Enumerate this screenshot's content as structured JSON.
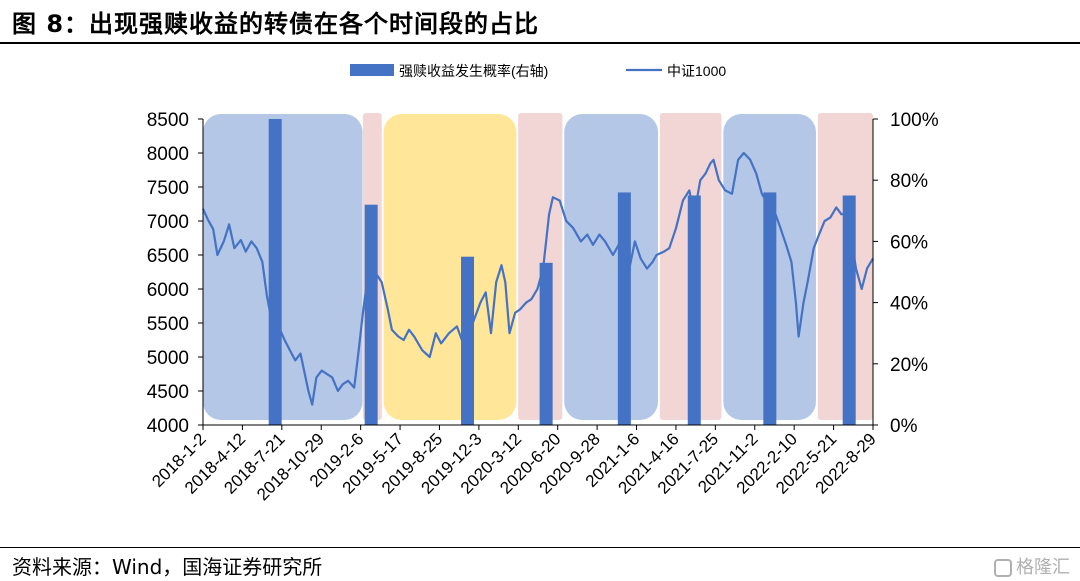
{
  "title": "图 8：出现强赎收益的转债在各个时间段的占比",
  "source": "资料来源：Wind，国海证券研究所",
  "watermark": "格隆汇",
  "colors": {
    "bar": "#4472C4",
    "line": "#4472C4",
    "band_blue": "#B4C7E7",
    "band_pink": "#F2D5D5",
    "band_yellow": "#FFE699"
  },
  "chart_data": {
    "type": "bar+line",
    "legend": [
      "强赎收益发生概率(右轴)",
      "中证1000"
    ],
    "legend_position": "top-center",
    "y_left": {
      "min": 4000,
      "max": 8500,
      "ticks": [
        4000,
        4500,
        5000,
        5500,
        6000,
        6500,
        7000,
        7500,
        8000,
        8500
      ]
    },
    "y_right": {
      "min": 0,
      "max": 1,
      "ticks": [
        "0%",
        "20%",
        "40%",
        "60%",
        "80%",
        "100%"
      ]
    },
    "x_ticks": [
      "2018-1-2",
      "2018-4-12",
      "2018-7-21",
      "2018-10-29",
      "2019-2-6",
      "2019-5-17",
      "2019-8-25",
      "2019-12-3",
      "2020-3-12",
      "2020-6-20",
      "2020-9-28",
      "2021-1-6",
      "2021-4-16",
      "2021-7-25",
      "2021-11-2",
      "2022-2-10",
      "2022-5-21",
      "2022-8-29"
    ],
    "x_range": [
      "2018-01-02",
      "2022-11-10"
    ],
    "bands": [
      {
        "start": "2018-01-02",
        "end": "2019-02-28",
        "color": "blue"
      },
      {
        "start": "2019-03-01",
        "end": "2019-04-20",
        "color": "pink"
      },
      {
        "start": "2019-04-25",
        "end": "2020-04-10",
        "color": "yellow"
      },
      {
        "start": "2020-04-15",
        "end": "2020-08-10",
        "color": "pink"
      },
      {
        "start": "2020-08-15",
        "end": "2021-04-20",
        "color": "blue"
      },
      {
        "start": "2021-04-25",
        "end": "2021-10-05",
        "color": "pink"
      },
      {
        "start": "2021-10-10",
        "end": "2022-06-12",
        "color": "blue"
      },
      {
        "start": "2022-06-17",
        "end": "2022-11-10",
        "color": "pink"
      }
    ],
    "bars": [
      {
        "date": "2018-07-12",
        "value": 1.0
      },
      {
        "date": "2019-03-23",
        "value": 0.72
      },
      {
        "date": "2019-12-03",
        "value": 0.55
      },
      {
        "date": "2020-06-28",
        "value": 0.53
      },
      {
        "date": "2021-01-21",
        "value": 0.76
      },
      {
        "date": "2021-07-25",
        "value": 0.75
      },
      {
        "date": "2022-02-10",
        "value": 0.76
      },
      {
        "date": "2022-09-08",
        "value": 0.75
      }
    ],
    "series": [
      {
        "name": "中证1000",
        "points": [
          [
            "2018-01-02",
            7180
          ],
          [
            "2018-01-15",
            7020
          ],
          [
            "2018-01-29",
            6880
          ],
          [
            "2018-02-09",
            6500
          ],
          [
            "2018-02-26",
            6700
          ],
          [
            "2018-03-12",
            6950
          ],
          [
            "2018-03-26",
            6600
          ],
          [
            "2018-04-12",
            6720
          ],
          [
            "2018-04-25",
            6550
          ],
          [
            "2018-05-10",
            6700
          ],
          [
            "2018-05-24",
            6600
          ],
          [
            "2018-06-08",
            6400
          ],
          [
            "2018-06-20",
            5900
          ],
          [
            "2018-07-02",
            5550
          ],
          [
            "2018-07-12",
            5600
          ],
          [
            "2018-07-21",
            5450
          ],
          [
            "2018-08-06",
            5250
          ],
          [
            "2018-08-20",
            5100
          ],
          [
            "2018-09-03",
            4950
          ],
          [
            "2018-09-17",
            5050
          ],
          [
            "2018-10-08",
            4500
          ],
          [
            "2018-10-18",
            4300
          ],
          [
            "2018-10-29",
            4700
          ],
          [
            "2018-11-12",
            4800
          ],
          [
            "2018-11-26",
            4750
          ],
          [
            "2018-12-10",
            4700
          ],
          [
            "2018-12-25",
            4500
          ],
          [
            "2019-01-07",
            4600
          ],
          [
            "2019-01-21",
            4650
          ],
          [
            "2019-02-06",
            4550
          ],
          [
            "2019-02-18",
            5100
          ],
          [
            "2019-02-28",
            5600
          ],
          [
            "2019-03-12",
            6100
          ],
          [
            "2019-03-25",
            6000
          ],
          [
            "2019-04-08",
            6200
          ],
          [
            "2019-04-20",
            6100
          ],
          [
            "2019-05-06",
            5700
          ],
          [
            "2019-05-17",
            5400
          ],
          [
            "2019-06-03",
            5300
          ],
          [
            "2019-06-17",
            5250
          ],
          [
            "2019-07-01",
            5400
          ],
          [
            "2019-07-15",
            5300
          ],
          [
            "2019-08-05",
            5100
          ],
          [
            "2019-08-25",
            5000
          ],
          [
            "2019-09-10",
            5350
          ],
          [
            "2019-09-24",
            5200
          ],
          [
            "2019-10-15",
            5350
          ],
          [
            "2019-11-05",
            5450
          ],
          [
            "2019-11-18",
            5250
          ],
          [
            "2019-12-03",
            5200
          ],
          [
            "2019-12-17",
            5500
          ],
          [
            "2020-01-06",
            5800
          ],
          [
            "2020-01-20",
            5950
          ],
          [
            "2020-02-03",
            5350
          ],
          [
            "2020-02-17",
            6100
          ],
          [
            "2020-03-02",
            6350
          ],
          [
            "2020-03-12",
            6100
          ],
          [
            "2020-03-23",
            5350
          ],
          [
            "2020-04-07",
            5650
          ],
          [
            "2020-04-20",
            5700
          ],
          [
            "2020-05-06",
            5800
          ],
          [
            "2020-05-20",
            5850
          ],
          [
            "2020-06-05",
            6000
          ],
          [
            "2020-06-20",
            6300
          ],
          [
            "2020-07-06",
            7100
          ],
          [
            "2020-07-16",
            7350
          ],
          [
            "2020-08-03",
            7300
          ],
          [
            "2020-08-20",
            7000
          ],
          [
            "2020-09-07",
            6900
          ],
          [
            "2020-09-28",
            6700
          ],
          [
            "2020-10-15",
            6800
          ],
          [
            "2020-10-30",
            6650
          ],
          [
            "2020-11-16",
            6800
          ],
          [
            "2020-12-01",
            6700
          ],
          [
            "2020-12-22",
            6500
          ],
          [
            "2021-01-06",
            6650
          ],
          [
            "2021-01-21",
            6600
          ],
          [
            "2021-02-03",
            6300
          ],
          [
            "2021-02-18",
            6700
          ],
          [
            "2021-03-05",
            6450
          ],
          [
            "2021-03-22",
            6300
          ],
          [
            "2021-04-06",
            6400
          ],
          [
            "2021-04-16",
            6500
          ],
          [
            "2021-05-06",
            6550
          ],
          [
            "2021-05-20",
            6600
          ],
          [
            "2021-06-07",
            6900
          ],
          [
            "2021-06-25",
            7300
          ],
          [
            "2021-07-12",
            7450
          ],
          [
            "2021-07-25",
            7100
          ],
          [
            "2021-08-10",
            7600
          ],
          [
            "2021-08-24",
            7700
          ],
          [
            "2021-09-06",
            7850
          ],
          [
            "2021-09-14",
            7900
          ],
          [
            "2021-09-28",
            7600
          ],
          [
            "2021-10-15",
            7450
          ],
          [
            "2021-11-02",
            7400
          ],
          [
            "2021-11-18",
            7900
          ],
          [
            "2021-12-03",
            8000
          ],
          [
            "2021-12-20",
            7900
          ],
          [
            "2022-01-05",
            7700
          ],
          [
            "2022-01-20",
            7400
          ],
          [
            "2022-02-10",
            7200
          ],
          [
            "2022-02-25",
            7100
          ],
          [
            "2022-03-10",
            6900
          ],
          [
            "2022-03-25",
            6650
          ],
          [
            "2022-04-08",
            6400
          ],
          [
            "2022-04-20",
            5800
          ],
          [
            "2022-04-27",
            5300
          ],
          [
            "2022-05-10",
            5800
          ],
          [
            "2022-05-21",
            6100
          ],
          [
            "2022-06-06",
            6600
          ],
          [
            "2022-06-20",
            6800
          ],
          [
            "2022-07-05",
            7000
          ],
          [
            "2022-07-20",
            7050
          ],
          [
            "2022-08-05",
            7200
          ],
          [
            "2022-08-18",
            7100
          ],
          [
            "2022-08-29",
            7100
          ],
          [
            "2022-09-12",
            6800
          ],
          [
            "2022-09-26",
            6300
          ],
          [
            "2022-10-11",
            6000
          ],
          [
            "2022-10-25",
            6300
          ],
          [
            "2022-11-10",
            6450
          ]
        ]
      }
    ]
  }
}
